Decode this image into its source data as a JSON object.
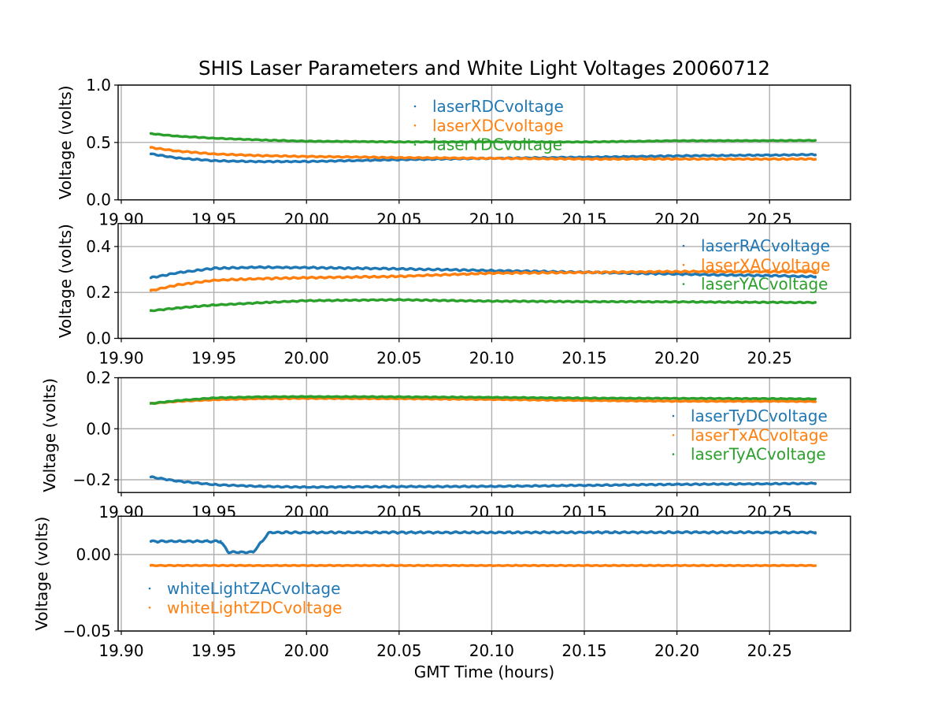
{
  "chart_data": {
    "type": "scatter",
    "title": "SHIS Laser Parameters and White Light Voltages 20060712",
    "xlabel": "GMT Time (hours)",
    "xlim": [
      19.8983,
      20.2937
    ],
    "x_ticks": [
      {
        "value": 19.9,
        "label": "19.90"
      },
      {
        "value": 19.95,
        "label": "19.95"
      },
      {
        "value": 20.0,
        "label": "20.00"
      },
      {
        "value": 20.05,
        "label": "20.05"
      },
      {
        "value": 20.1,
        "label": "20.10"
      },
      {
        "value": 20.15,
        "label": "20.15"
      },
      {
        "value": 20.2,
        "label": "20.20"
      },
      {
        "value": 20.25,
        "label": "20.25"
      }
    ],
    "grid": true,
    "subplots": [
      {
        "ylabel": "Voltage (volts)",
        "ylim": [
          0.0,
          1.0
        ],
        "y_ticks": [
          {
            "value": 0.0,
            "label": "0.0"
          },
          {
            "value": 0.5,
            "label": "0.5"
          },
          {
            "value": 1.0,
            "label": "1.0"
          }
        ],
        "legend_location": "upper center",
        "series": [
          {
            "name": "laserRDCvoltage",
            "color": "#1f77b4",
            "ripple": 0.006,
            "x": [
              19.916,
              19.93,
              19.95,
              19.975,
              20.0,
              20.05,
              20.1,
              20.15,
              20.2,
              20.25,
              20.2747
            ],
            "y": [
              0.4,
              0.365,
              0.341,
              0.333,
              0.334,
              0.35,
              0.362,
              0.371,
              0.383,
              0.39,
              0.394
            ]
          },
          {
            "name": "laserXDCvoltage",
            "color": "#ff7f0e",
            "ripple": 0.006,
            "x": [
              19.916,
              19.93,
              19.95,
              19.975,
              20.0,
              20.05,
              20.1,
              20.15,
              20.2,
              20.25,
              20.2747
            ],
            "y": [
              0.456,
              0.425,
              0.4,
              0.385,
              0.378,
              0.368,
              0.362,
              0.356,
              0.356,
              0.355,
              0.356
            ]
          },
          {
            "name": "laserYDCvoltage",
            "color": "#2ca02c",
            "ripple": 0.004,
            "x": [
              19.916,
              19.93,
              19.95,
              19.975,
              20.0,
              20.05,
              20.1,
              20.15,
              20.2,
              20.25,
              20.2747
            ],
            "y": [
              0.577,
              0.555,
              0.537,
              0.522,
              0.511,
              0.505,
              0.505,
              0.504,
              0.515,
              0.516,
              0.518
            ]
          }
        ]
      },
      {
        "ylabel": "Voltage (volts)",
        "ylim": [
          0.0,
          0.5
        ],
        "y_ticks": [
          {
            "value": 0.0,
            "label": "0.0"
          },
          {
            "value": 0.2,
            "label": "0.2"
          },
          {
            "value": 0.4,
            "label": "0.4"
          }
        ],
        "legend_location": "upper right",
        "series": [
          {
            "name": "laserRACvoltage",
            "color": "#1f77b4",
            "ripple": 0.004,
            "x": [
              19.916,
              19.93,
              19.95,
              19.975,
              20.0,
              20.05,
              20.1,
              20.15,
              20.2,
              20.25,
              20.2747
            ],
            "y": [
              0.264,
              0.285,
              0.305,
              0.31,
              0.308,
              0.303,
              0.295,
              0.288,
              0.28,
              0.273,
              0.269
            ]
          },
          {
            "name": "laserXACvoltage",
            "color": "#ff7f0e",
            "ripple": 0.004,
            "x": [
              19.916,
              19.93,
              19.95,
              19.975,
              20.0,
              20.05,
              20.1,
              20.15,
              20.2,
              20.25,
              20.2747
            ],
            "y": [
              0.208,
              0.232,
              0.253,
              0.26,
              0.264,
              0.27,
              0.284,
              0.287,
              0.291,
              0.29,
              0.291
            ]
          },
          {
            "name": "laserYACvoltage",
            "color": "#2ca02c",
            "ripple": 0.003,
            "x": [
              19.916,
              19.93,
              19.95,
              19.975,
              20.0,
              20.05,
              20.1,
              20.15,
              20.2,
              20.25,
              20.2747
            ],
            "y": [
              0.12,
              0.132,
              0.145,
              0.155,
              0.164,
              0.168,
              0.162,
              0.16,
              0.159,
              0.157,
              0.156
            ]
          }
        ]
      },
      {
        "ylabel": "Voltage (volts)",
        "ylim": [
          -0.25,
          0.2
        ],
        "y_ticks": [
          {
            "value": -0.2,
            "label": "−0.2"
          },
          {
            "value": 0.0,
            "label": "0.0"
          },
          {
            "value": 0.2,
            "label": "0.2"
          }
        ],
        "legend_location": "center right",
        "series": [
          {
            "name": "laserTyDCvoltage",
            "color": "#1f77b4",
            "ripple": 0.003,
            "x": [
              19.916,
              19.93,
              19.95,
              19.975,
              20.0,
              20.05,
              20.1,
              20.15,
              20.2,
              20.25,
              20.2747
            ],
            "y": [
              -0.189,
              -0.205,
              -0.219,
              -0.226,
              -0.229,
              -0.227,
              -0.226,
              -0.222,
              -0.218,
              -0.216,
              -0.214
            ]
          },
          {
            "name": "laserTxACvoltage",
            "color": "#ff7f0e",
            "ripple": 0.002,
            "x": [
              19.916,
              19.93,
              19.95,
              19.975,
              20.0,
              20.05,
              20.1,
              20.15,
              20.2,
              20.25,
              20.2747
            ],
            "y": [
              0.099,
              0.107,
              0.114,
              0.118,
              0.119,
              0.118,
              0.115,
              0.111,
              0.108,
              0.108,
              0.107
            ]
          },
          {
            "name": "laserTyACvoltage",
            "color": "#2ca02c",
            "ripple": 0.002,
            "x": [
              19.916,
              19.93,
              19.95,
              19.975,
              20.0,
              20.05,
              20.1,
              20.15,
              20.2,
              20.25,
              20.2747
            ],
            "y": [
              0.099,
              0.11,
              0.121,
              0.125,
              0.126,
              0.125,
              0.123,
              0.12,
              0.119,
              0.118,
              0.117
            ]
          }
        ]
      },
      {
        "ylabel": "Voltage (volts)",
        "ylim": [
          -0.05,
          0.025
        ],
        "y_ticks": [
          {
            "value": -0.05,
            "label": "−0.05"
          },
          {
            "value": 0.0,
            "label": "0.00"
          }
        ],
        "legend_location": "lower left",
        "series": [
          {
            "name": "whiteLightZACvoltage",
            "color": "#1f77b4",
            "ripple": 0.0007,
            "x": [
              19.916,
              19.9536,
              19.9578,
              19.9713,
              19.9798,
              20.0,
              20.1,
              20.2,
              20.2747
            ],
            "y": [
              0.0086,
              0.0086,
              0.0015,
              0.0015,
              0.0144,
              0.0144,
              0.0144,
              0.0145,
              0.0144
            ]
          },
          {
            "name": "whiteLightZDCvoltage",
            "color": "#ff7f0e",
            "ripple": 0.0003,
            "x": [
              19.916,
              20.2747
            ],
            "y": [
              -0.0072,
              -0.0072
            ]
          }
        ]
      }
    ]
  }
}
